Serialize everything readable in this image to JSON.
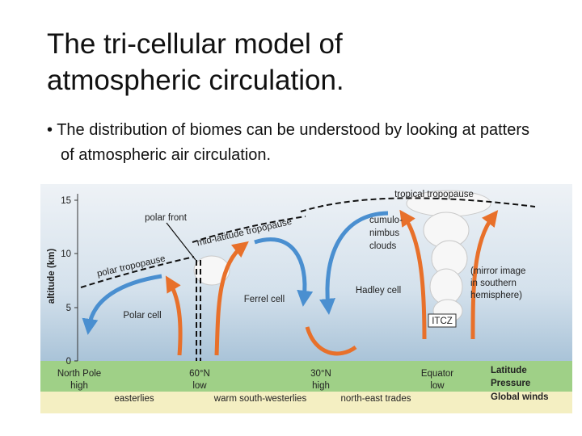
{
  "slide": {
    "title": "The tri-cellular model of atmospheric circulation.",
    "bullet": "The distribution of biomes can be understood by looking at patters of atmospheric air circulation.",
    "diagram": {
      "axis_title": "altitude (km)",
      "axis_ticks": [
        "15",
        "10",
        "5",
        "0"
      ],
      "labels": {
        "tropical_tropopause": "tropical tropopause",
        "polar_front": "polar front",
        "mid_latitude_tropopause": "mid-latitude tropopause",
        "polar_tropopause": "polar tropopause",
        "cumulonimbus": [
          "cumulo-",
          "nimbus",
          "clouds"
        ],
        "mirror_note": [
          "(mirror image",
          "in southern",
          "hemisphere)"
        ],
        "hadley_cell": "Hadley cell",
        "ferrel_cell": "Ferrel cell",
        "polar_cell": "Polar cell",
        "itcz": "ITCZ"
      },
      "locations": [
        {
          "latitude": "North Pole",
          "pressure": "high"
        },
        {
          "latitude": "60°N",
          "pressure": "low"
        },
        {
          "latitude": "30°N",
          "pressure": "high"
        },
        {
          "latitude": "Equator",
          "pressure": "low"
        }
      ],
      "winds": [
        "easterlies",
        "warm south-westerlies",
        "north-east trades"
      ],
      "key": [
        "Latitude",
        "Pressure",
        "Global winds"
      ]
    }
  }
}
